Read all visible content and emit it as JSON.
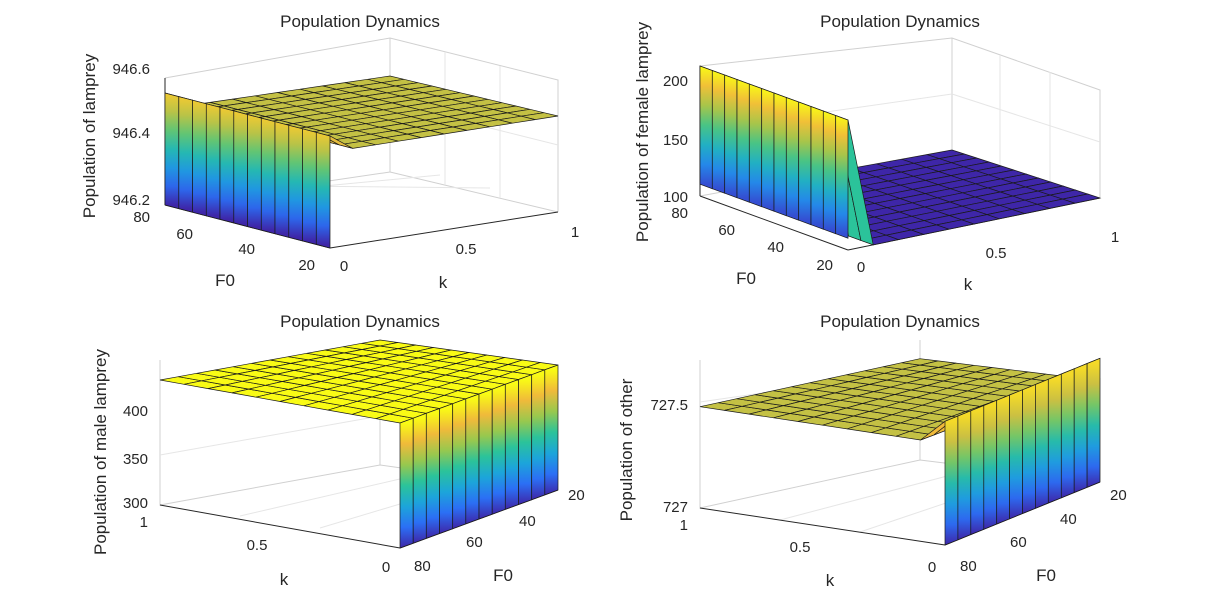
{
  "chart_data": [
    {
      "type": "surface",
      "title": "Population Dynamics",
      "zlabel": "Population of lamprey",
      "xlabel": "F0",
      "ylabel": "k",
      "x_ticks": [
        "80",
        "60",
        "40",
        "20"
      ],
      "y_ticks": [
        "0",
        "0.5",
        "1"
      ],
      "z_ticks": [
        "946.2",
        "946.4",
        "946.6"
      ],
      "x_range": [
        20,
        80
      ],
      "y_range": [
        0,
        1
      ],
      "zlim": [
        946.2,
        946.6
      ],
      "surface": {
        "k0_min": 946.2,
        "k0_max": 946.55,
        "plateau": 946.5
      },
      "colormap": [
        "#3e26a8",
        "#2b6ff5",
        "#1ca5da",
        "#2bc39a",
        "#98c84e",
        "#f0ba3a",
        "#f9fb15"
      ]
    },
    {
      "type": "surface",
      "title": "Population Dynamics",
      "zlabel": "Population of female lamprey",
      "xlabel": "F0",
      "ylabel": "k",
      "x_ticks": [
        "80",
        "60",
        "40",
        "20"
      ],
      "y_ticks": [
        "0",
        "0.5",
        "1"
      ],
      "z_ticks": [
        "100",
        "150",
        "200"
      ],
      "x_range": [
        20,
        80
      ],
      "y_range": [
        0,
        1
      ],
      "zlim": [
        100,
        210
      ],
      "surface": {
        "k0_min": 110,
        "k0_max": 210,
        "plateau": 100
      },
      "colormap": [
        "#3e26a8",
        "#2b6ff5",
        "#1ca5da",
        "#2bc39a",
        "#98c84e",
        "#f0ba3a",
        "#f9fb15"
      ]
    },
    {
      "type": "surface",
      "title": "Population Dynamics",
      "zlabel": "Population of male lamprey",
      "xlabel": "F0",
      "ylabel": "k",
      "x_ticks": [
        "80",
        "60",
        "40",
        "20"
      ],
      "y_ticks": [
        "1",
        "0.5",
        "0"
      ],
      "z_ticks": [
        "300",
        "350",
        "400"
      ],
      "x_range": [
        20,
        80
      ],
      "y_range": [
        0,
        1
      ],
      "zlim": [
        300,
        415
      ],
      "surface": {
        "k0_min": 300,
        "k0_max": 415,
        "plateau": 415
      },
      "colormap": [
        "#3e26a8",
        "#2b6ff5",
        "#1ca5da",
        "#2bc39a",
        "#98c84e",
        "#f0ba3a",
        "#f9fb15"
      ]
    },
    {
      "type": "surface",
      "title": "Population Dynamics",
      "zlabel": "Population of other",
      "xlabel": "F0",
      "ylabel": "k",
      "x_ticks": [
        "80",
        "60",
        "40",
        "20"
      ],
      "y_ticks": [
        "1",
        "0.5",
        "0"
      ],
      "z_ticks": [
        "727",
        "727.5"
      ],
      "x_range": [
        20,
        80
      ],
      "y_range": [
        0,
        1
      ],
      "zlim": [
        727,
        727.6
      ],
      "surface": {
        "k0_min": 727.0,
        "k0_max": 727.55,
        "plateau": 727.45
      },
      "colormap": [
        "#3e26a8",
        "#2b6ff5",
        "#1ca5da",
        "#2bc39a",
        "#98c84e",
        "#f0ba3a",
        "#f9fb15"
      ]
    }
  ]
}
